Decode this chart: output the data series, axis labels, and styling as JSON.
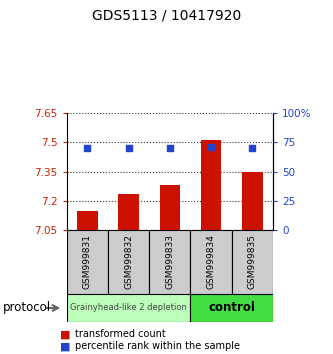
{
  "title": "GDS5113 / 10417920",
  "samples": [
    "GSM999831",
    "GSM999832",
    "GSM999833",
    "GSM999834",
    "GSM999835"
  ],
  "bar_values": [
    7.15,
    7.235,
    7.28,
    7.515,
    7.35
  ],
  "bar_baseline": 7.05,
  "blue_values": [
    70,
    70,
    70,
    71,
    70
  ],
  "bar_color": "#cc1100",
  "blue_color": "#2244cc",
  "ylim_left": [
    7.05,
    7.65
  ],
  "ylim_right": [
    0,
    100
  ],
  "yticks_left": [
    7.05,
    7.2,
    7.35,
    7.5,
    7.65
  ],
  "yticks_right": [
    0,
    25,
    50,
    75,
    100
  ],
  "ytick_labels_left": [
    "7.05",
    "7.2",
    "7.35",
    "7.5",
    "7.65"
  ],
  "ytick_labels_right": [
    "0",
    "25",
    "50",
    "75",
    "100%"
  ],
  "group1_label": "Grainyhead-like 2 depletion",
  "group2_label": "control",
  "group1_indices": [
    0,
    1,
    2
  ],
  "group2_indices": [
    3,
    4
  ],
  "group1_color": "#bbffbb",
  "group2_color": "#44dd44",
  "protocol_label": "protocol",
  "legend_bar_label": "transformed count",
  "legend_blue_label": "percentile rank within the sample",
  "background_color": "#ffffff",
  "plot_bg_color": "#ffffff",
  "sample_box_color": "#cccccc",
  "dotted_line_color": "#333333",
  "title_fontsize": 10,
  "tick_fontsize": 7.5,
  "bar_width": 0.5
}
